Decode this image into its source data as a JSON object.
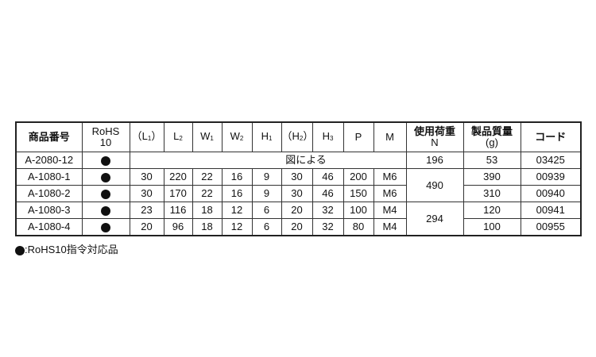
{
  "headers": {
    "product": "商品番号",
    "rohs": "RoHS\n10",
    "l1": "（L",
    "l1s": "1",
    "l1e": "）",
    "l2": "L",
    "l2s": "2",
    "w1": "W",
    "w1s": "1",
    "w2": "W",
    "w2s": "2",
    "h1": "H",
    "h1s": "1",
    "h2": "（H",
    "h2s": "2",
    "h2e": "）",
    "h3": "H",
    "h3s": "3",
    "p": "P",
    "m": "M",
    "load1": "使用荷重",
    "load2": "N",
    "mass1": "製品質量",
    "mass2": "(g)",
    "code": "コード"
  },
  "rows": [
    {
      "product": "A-2080-12",
      "rohs": true,
      "span_text": "図による",
      "load": "196",
      "mass": "53",
      "code": "03425"
    },
    {
      "product": "A-1080-1",
      "rohs": true,
      "L1": "30",
      "L2": "220",
      "W1": "22",
      "W2": "16",
      "H1": "9",
      "H2": "30",
      "H3": "46",
      "P": "200",
      "M": "M6",
      "load": "490",
      "mass": "390",
      "code": "00939"
    },
    {
      "product": "A-1080-2",
      "rohs": true,
      "L1": "30",
      "L2": "170",
      "W1": "22",
      "W2": "16",
      "H1": "9",
      "H2": "30",
      "H3": "46",
      "P": "150",
      "M": "M6",
      "load": "490",
      "mass": "310",
      "code": "00940"
    },
    {
      "product": "A-1080-3",
      "rohs": true,
      "L1": "23",
      "L2": "116",
      "W1": "18",
      "W2": "12",
      "H1": "6",
      "H2": "20",
      "H3": "32",
      "P": "100",
      "M": "M4",
      "load": "294",
      "mass": "120",
      "code": "00941"
    },
    {
      "product": "A-1080-4",
      "rohs": true,
      "L1": "20",
      "L2": "96",
      "W1": "18",
      "W2": "12",
      "H1": "6",
      "H2": "20",
      "H3": "32",
      "P": "80",
      "M": "M4",
      "load": "294",
      "mass": "100",
      "code": "00955"
    }
  ],
  "footnote": ":RoHS10指令対応品"
}
